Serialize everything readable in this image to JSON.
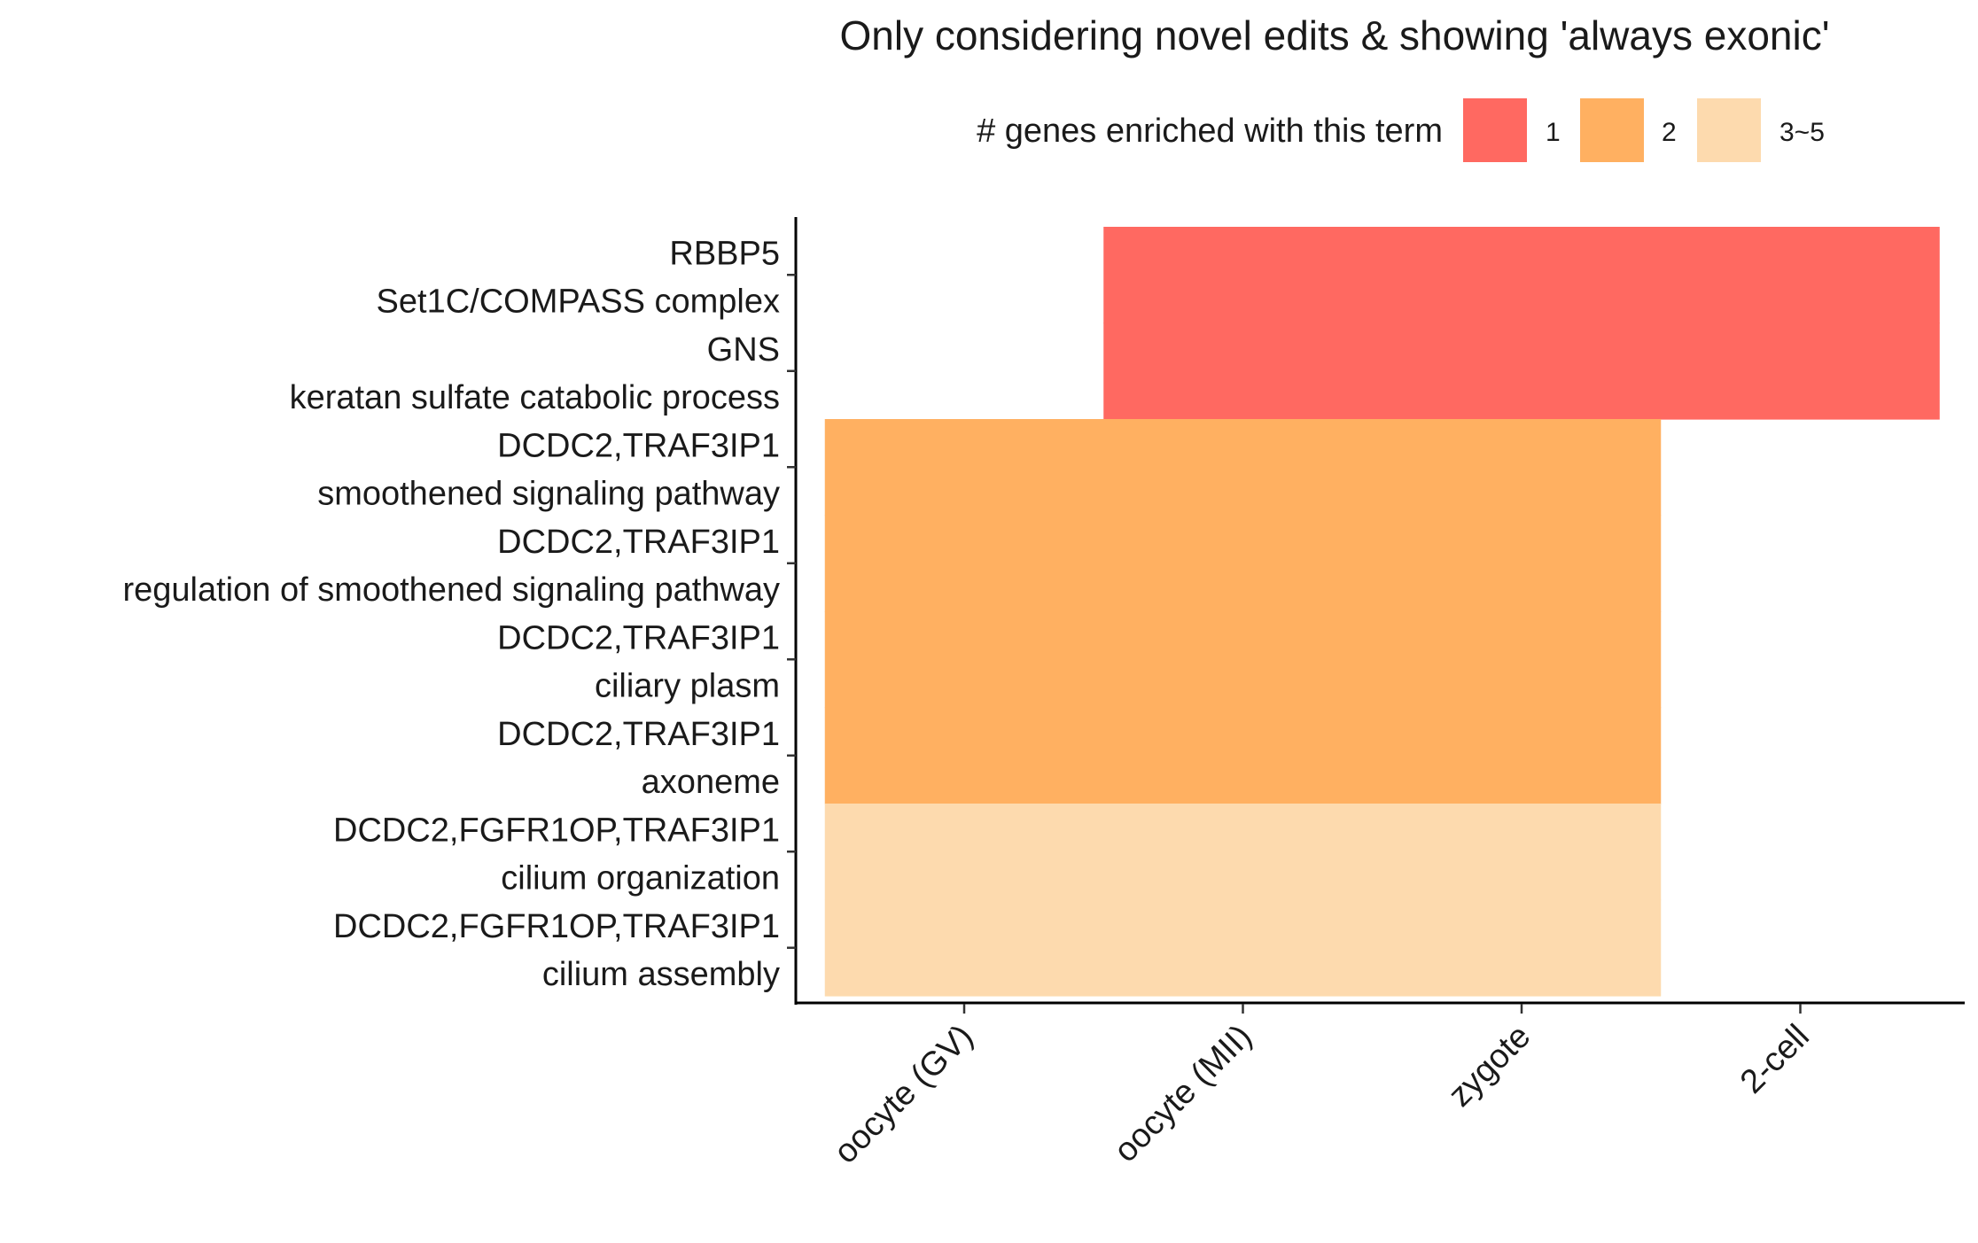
{
  "chart_data": {
    "type": "heatmap",
    "title": "Only considering novel edits & showing 'always exonic'",
    "xlabel": "",
    "ylabel": "",
    "x_categories": [
      "oocyte (GV)",
      "oocyte (MII)",
      "zygote",
      "2-cell"
    ],
    "y_categories": [
      {
        "genes": "RBBP5",
        "term": "Set1C/COMPASS complex"
      },
      {
        "genes": "GNS",
        "term": "keratan sulfate catabolic process"
      },
      {
        "genes": "DCDC2,TRAF3IP1",
        "term": "smoothened signaling pathway"
      },
      {
        "genes": "DCDC2,TRAF3IP1",
        "term": "regulation of smoothened signaling pathway"
      },
      {
        "genes": "DCDC2,TRAF3IP1",
        "term": "ciliary plasm"
      },
      {
        "genes": "DCDC2,TRAF3IP1",
        "term": "axoneme"
      },
      {
        "genes": "DCDC2,FGFR1OP,TRAF3IP1",
        "term": "cilium organization"
      },
      {
        "genes": "DCDC2,FGFR1OP,TRAF3IP1",
        "term": "cilium assembly"
      }
    ],
    "legend": {
      "title": "# genes enriched with this term",
      "position": "top",
      "entries": [
        {
          "label": "1",
          "color": "#FF6961"
        },
        {
          "label": "2",
          "color": "#FFB061"
        },
        {
          "label": "3~5",
          "color": "#FDDAAE"
        }
      ]
    },
    "grid": false,
    "cells": [
      {
        "row": 0,
        "x_from": "oocyte (MII)",
        "x_to": "2-cell",
        "category": "1"
      },
      {
        "row": 1,
        "x_from": "oocyte (MII)",
        "x_to": "2-cell",
        "category": "1"
      },
      {
        "row": 2,
        "x_from": "oocyte (GV)",
        "x_to": "zygote",
        "category": "2"
      },
      {
        "row": 3,
        "x_from": "oocyte (GV)",
        "x_to": "zygote",
        "category": "2"
      },
      {
        "row": 4,
        "x_from": "oocyte (GV)",
        "x_to": "zygote",
        "category": "2"
      },
      {
        "row": 5,
        "x_from": "oocyte (GV)",
        "x_to": "zygote",
        "category": "2"
      },
      {
        "row": 6,
        "x_from": "oocyte (GV)",
        "x_to": "zygote",
        "category": "3~5"
      },
      {
        "row": 7,
        "x_from": "oocyte (GV)",
        "x_to": "zygote",
        "category": "3~5"
      }
    ]
  }
}
